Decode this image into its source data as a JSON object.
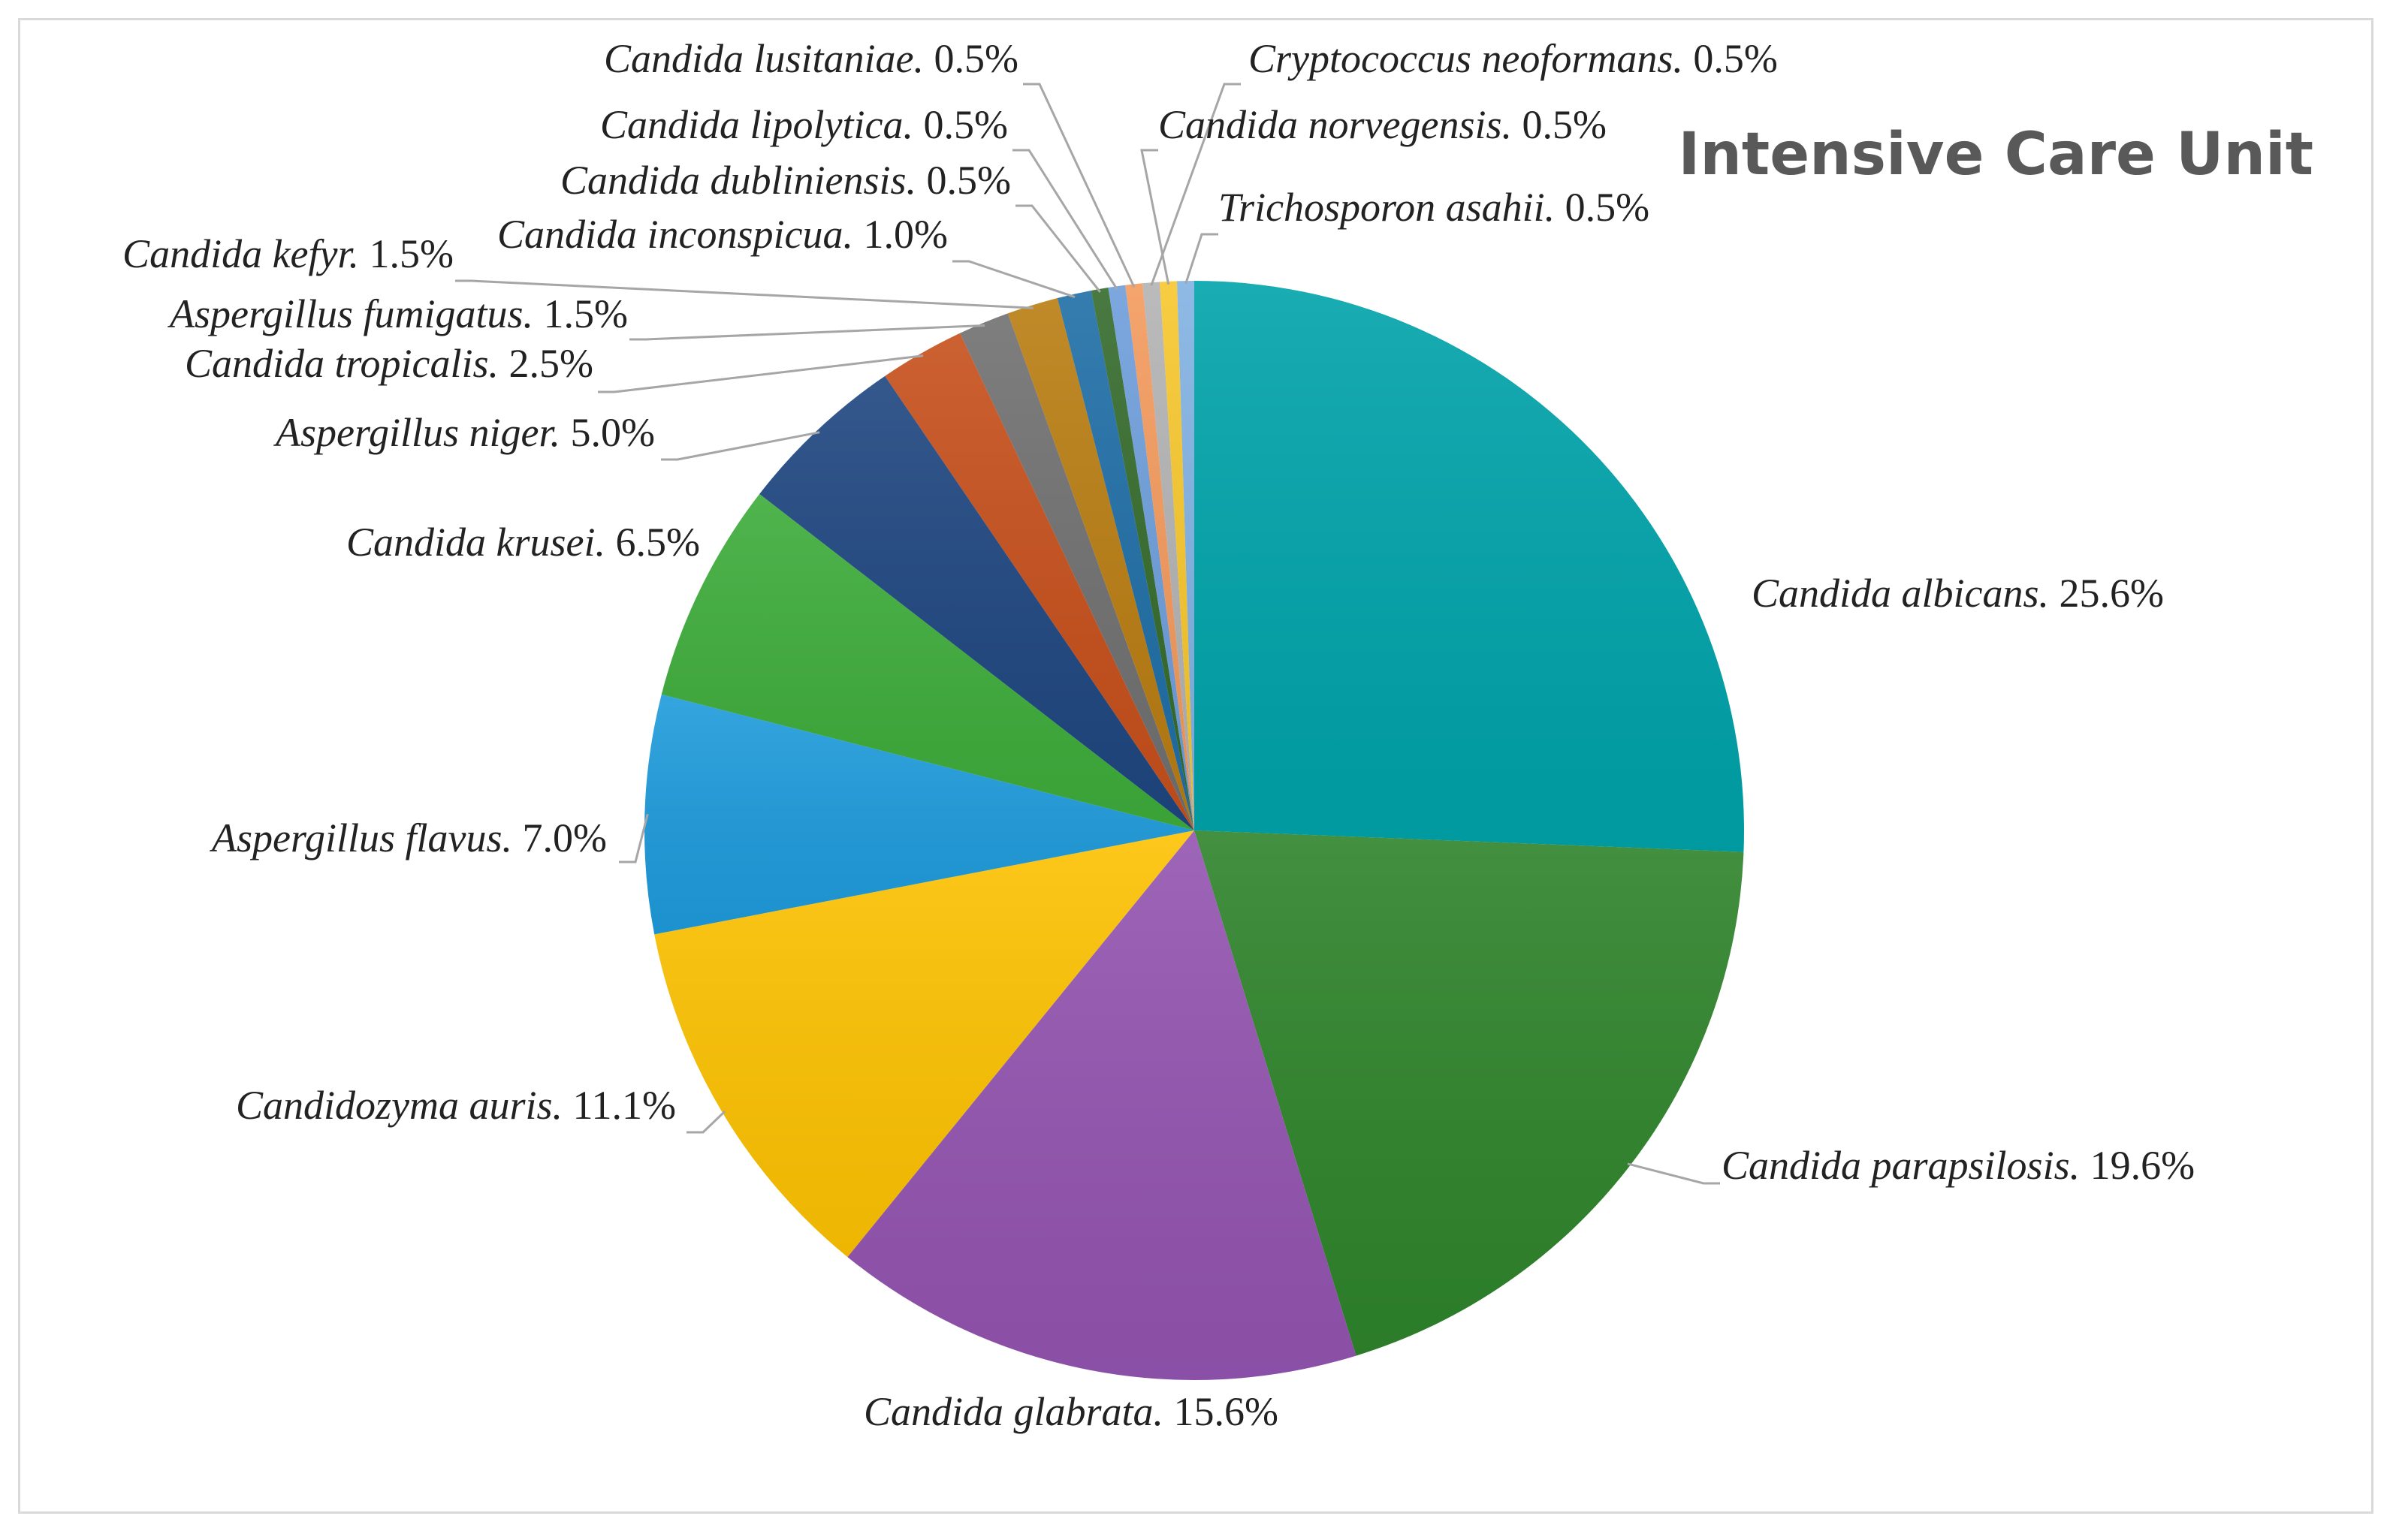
{
  "chart_data": {
    "type": "pie",
    "title": "Intensive Care Unit",
    "start_angle_deg": 0,
    "direction": "clockwise",
    "slices": [
      {
        "name": "Candida albicans",
        "value": 25.6,
        "label": "25.6%",
        "color": "#00A3AA"
      },
      {
        "name": "Candida parapsilosis",
        "value": 19.6,
        "label": "19.6%",
        "color": "#2E842B"
      },
      {
        "name": "Candida glabrata",
        "value": 15.6,
        "label": "15.6%",
        "color": "#9354B0"
      },
      {
        "name": "Candidozyma auris",
        "value": 11.1,
        "label": "11.1%",
        "color": "#FDC202"
      },
      {
        "name": "Aspergillus flavus",
        "value": 7.0,
        "label": "7.0%",
        "color": "#1E9BDB"
      },
      {
        "name": "Candida krusei",
        "value": 6.5,
        "label": "6.5%",
        "color": "#3DAC3A"
      },
      {
        "name": "Aspergillus niger",
        "value": 5.0,
        "label": "5.0%",
        "color": "#1E4680"
      },
      {
        "name": "Candida tropicalis",
        "value": 2.5,
        "label": "2.5%",
        "color": "#C64F1B"
      },
      {
        "name": "Aspergillus fumigatus",
        "value": 1.5,
        "label": "1.5%",
        "color": "#707070"
      },
      {
        "name": "Candida kefyr",
        "value": 1.5,
        "label": "1.5%",
        "color": "#B97D12"
      },
      {
        "name": "Candida inconspicua",
        "value": 1.0,
        "label": "1.0%",
        "color": "#1F6EA6"
      },
      {
        "name": "Candida dubliniensis",
        "value": 0.5,
        "label": "0.5%",
        "color": "#356B2C"
      },
      {
        "name": "Candida lipolytica",
        "value": 0.5,
        "label": "0.5%",
        "color": "#6E9EDB"
      },
      {
        "name": "Candida lusitaniae",
        "value": 0.5,
        "label": "0.5%",
        "color": "#F39A5D"
      },
      {
        "name": "Cryptococcus neoformans",
        "value": 0.5,
        "label": "0.5%",
        "color": "#B3B3B3"
      },
      {
        "name": "Candida norvegensis",
        "value": 0.5,
        "label": "0.5%",
        "color": "#F7C72D"
      },
      {
        "name": "Trichosporon asahii",
        "value": 0.5,
        "label": "0.5%",
        "color": "#82B2E3"
      }
    ]
  }
}
